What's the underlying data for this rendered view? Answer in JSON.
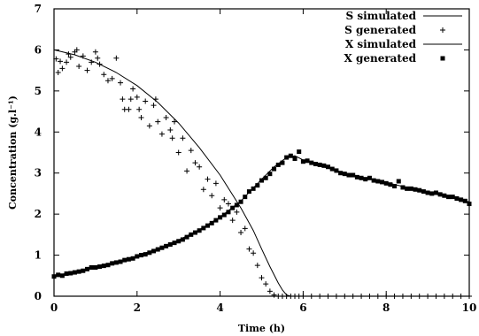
{
  "chart_data": {
    "type": "scatter",
    "title": "",
    "xlabel": "Time (h)",
    "ylabel": "Concentration (g.l⁻¹)",
    "xlim": [
      0,
      10
    ],
    "ylim": [
      0,
      7
    ],
    "xticks": [
      "0",
      "2",
      "4",
      "6",
      "8",
      "10"
    ],
    "yticks": [
      "0",
      "1",
      "2",
      "3",
      "4",
      "5",
      "6",
      "7"
    ],
    "grid": false,
    "legend_position": "top-right",
    "colors": {
      "line": "#000000",
      "marker": "#000000",
      "axis": "#000000"
    },
    "series": [
      {
        "name": "S simulated",
        "style": "line",
        "x": [
          0,
          0.5,
          1,
          1.5,
          2,
          2.5,
          3,
          3.5,
          4,
          4.5,
          4.8,
          5,
          5.2,
          5.4,
          5.5,
          5.6,
          5.7,
          5.8,
          6,
          7,
          8,
          9,
          10
        ],
        "y": [
          6.0,
          5.88,
          5.7,
          5.45,
          5.13,
          4.72,
          4.22,
          3.62,
          2.95,
          2.15,
          1.6,
          1.15,
          0.72,
          0.32,
          0.15,
          0.03,
          0.0,
          0.0,
          0.0,
          0.0,
          0.0,
          0.0,
          0.0
        ]
      },
      {
        "name": "S generated",
        "style": "plus",
        "x": [
          0.05,
          0.1,
          0.15,
          0.2,
          0.3,
          0.35,
          0.4,
          0.5,
          0.55,
          0.6,
          0.7,
          0.8,
          0.9,
          1.0,
          1.05,
          1.1,
          1.2,
          1.3,
          1.4,
          1.5,
          1.6,
          1.65,
          1.7,
          1.8,
          1.85,
          1.9,
          2.0,
          2.05,
          2.1,
          2.2,
          2.3,
          2.4,
          2.45,
          2.5,
          2.6,
          2.7,
          2.8,
          2.85,
          2.9,
          3.0,
          3.1,
          3.2,
          3.3,
          3.4,
          3.5,
          3.6,
          3.7,
          3.8,
          3.9,
          4.0,
          4.1,
          4.2,
          4.3,
          4.4,
          4.5,
          4.6,
          4.7,
          4.8,
          4.9,
          5.0,
          5.1,
          5.2,
          5.3,
          5.4,
          5.5,
          5.6,
          5.7,
          5.8,
          5.9,
          6.0,
          6.2,
          6.4,
          6.6,
          6.8,
          7.0,
          7.2,
          7.4,
          7.6,
          7.8,
          8.0,
          8.2,
          8.4,
          8.6,
          8.8,
          9.0,
          9.2,
          9.4,
          9.6,
          9.8,
          10.0
        ],
        "y": [
          5.78,
          5.45,
          5.72,
          5.55,
          5.7,
          5.9,
          5.82,
          5.95,
          6.0,
          5.6,
          5.85,
          5.5,
          5.7,
          5.95,
          5.8,
          5.65,
          5.4,
          5.25,
          5.3,
          5.8,
          5.2,
          4.8,
          4.55,
          4.55,
          4.8,
          5.05,
          4.85,
          4.55,
          4.35,
          4.75,
          4.15,
          4.65,
          4.8,
          4.25,
          3.95,
          4.35,
          4.05,
          3.85,
          4.25,
          3.5,
          3.85,
          3.05,
          3.55,
          3.25,
          3.15,
          2.6,
          2.85,
          2.45,
          2.75,
          2.15,
          2.35,
          2.25,
          1.85,
          2.05,
          1.55,
          1.65,
          1.15,
          1.05,
          0.75,
          0.45,
          0.3,
          0.12,
          0.03,
          0.0,
          0.0,
          0.0,
          0.0,
          0.0,
          0.0,
          0.0,
          0.0,
          0.0,
          0.0,
          0.0,
          0.0,
          0.0,
          0.0,
          0.0,
          0.0,
          0.0,
          0.0,
          0.0,
          0.0,
          0.0,
          0.0,
          0.0,
          0.0,
          0.0,
          0.0,
          0.0
        ]
      },
      {
        "name": "X simulated",
        "style": "line",
        "x": [
          0,
          0.5,
          1,
          1.5,
          2,
          2.5,
          3,
          3.5,
          4,
          4.5,
          5,
          5.3,
          5.6,
          5.8,
          6,
          6.5,
          7,
          7.5,
          8,
          8.5,
          9,
          9.5,
          10
        ],
        "y": [
          0.5,
          0.59,
          0.7,
          0.83,
          0.98,
          1.16,
          1.37,
          1.62,
          1.93,
          2.32,
          2.85,
          3.15,
          3.38,
          3.42,
          3.32,
          3.15,
          3.0,
          2.88,
          2.77,
          2.65,
          2.53,
          2.41,
          2.3
        ]
      },
      {
        "name": "X generated",
        "style": "square",
        "x": [
          0,
          0.1,
          0.2,
          0.3,
          0.4,
          0.5,
          0.6,
          0.7,
          0.8,
          0.9,
          1.0,
          1.1,
          1.2,
          1.3,
          1.4,
          1.5,
          1.6,
          1.7,
          1.8,
          1.9,
          2.0,
          2.1,
          2.2,
          2.3,
          2.4,
          2.5,
          2.6,
          2.7,
          2.8,
          2.9,
          3.0,
          3.1,
          3.2,
          3.3,
          3.4,
          3.5,
          3.6,
          3.7,
          3.8,
          3.9,
          4.0,
          4.1,
          4.2,
          4.3,
          4.4,
          4.5,
          4.6,
          4.7,
          4.8,
          4.9,
          5.0,
          5.1,
          5.2,
          5.3,
          5.4,
          5.5,
          5.6,
          5.7,
          5.8,
          5.9,
          6.0,
          6.1,
          6.2,
          6.3,
          6.4,
          6.5,
          6.6,
          6.7,
          6.8,
          6.9,
          7.0,
          7.1,
          7.2,
          7.3,
          7.4,
          7.5,
          7.6,
          7.7,
          7.8,
          7.9,
          8.0,
          8.1,
          8.2,
          8.3,
          8.4,
          8.5,
          8.6,
          8.7,
          8.8,
          8.9,
          9.0,
          9.1,
          9.2,
          9.3,
          9.4,
          9.5,
          9.6,
          9.7,
          9.8,
          9.9,
          10.0
        ],
        "y": [
          0.48,
          0.52,
          0.5,
          0.55,
          0.56,
          0.58,
          0.6,
          0.62,
          0.66,
          0.7,
          0.7,
          0.72,
          0.74,
          0.76,
          0.8,
          0.82,
          0.84,
          0.88,
          0.9,
          0.92,
          0.97,
          1.0,
          1.02,
          1.06,
          1.1,
          1.14,
          1.18,
          1.22,
          1.26,
          1.3,
          1.34,
          1.38,
          1.44,
          1.5,
          1.55,
          1.6,
          1.66,
          1.72,
          1.78,
          1.85,
          1.92,
          1.98,
          2.05,
          2.15,
          2.22,
          2.3,
          2.42,
          2.55,
          2.62,
          2.7,
          2.82,
          2.88,
          2.98,
          3.1,
          3.2,
          3.25,
          3.38,
          3.42,
          3.35,
          3.52,
          3.28,
          3.3,
          3.25,
          3.22,
          3.2,
          3.18,
          3.15,
          3.1,
          3.06,
          3.0,
          2.98,
          2.95,
          2.95,
          2.9,
          2.88,
          2.85,
          2.88,
          2.82,
          2.8,
          2.78,
          2.75,
          2.72,
          2.68,
          2.8,
          2.65,
          2.62,
          2.62,
          2.6,
          2.58,
          2.55,
          2.52,
          2.5,
          2.52,
          2.48,
          2.45,
          2.42,
          2.42,
          2.38,
          2.35,
          2.32,
          2.25
        ]
      }
    ]
  }
}
